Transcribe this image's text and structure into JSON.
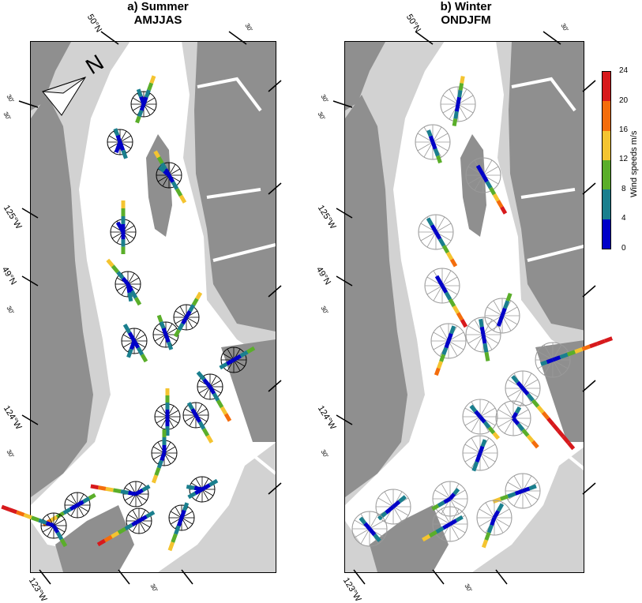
{
  "panels": [
    {
      "id": "a",
      "title_line1": "a) Summer",
      "title_line2": "AMJJAS"
    },
    {
      "id": "b",
      "title_line1": "b) Winter",
      "title_line2": "ONDJFM"
    }
  ],
  "graticule_labels": {
    "lat_50": "50°N",
    "lat_49": "49°N",
    "lon_125": "125°W",
    "lon_124": "124°W",
    "lon_123": "123°W",
    "minutes": "30'"
  },
  "north_arrow": {
    "label": "N"
  },
  "colorbar": {
    "title": "Wind speeds m/s",
    "ticks": [
      "24",
      "20",
      "16",
      "12",
      "8",
      "4",
      "0"
    ],
    "colors": [
      "#d7191c",
      "#f46d0c",
      "#f4c430",
      "#5aae2a",
      "#1a7f8e",
      "#0000c8"
    ]
  },
  "colors": {
    "water": "#ffffff",
    "land_light": "#d2d2d2",
    "land_dark": "#8f8f8f",
    "speed_0_4": "#0000c8",
    "speed_4_8": "#1a7f8e",
    "speed_8_12": "#5aae2a",
    "speed_12_16": "#f4c430",
    "speed_16_20": "#f46d0c",
    "speed_20_24": "#d7191c"
  }
}
